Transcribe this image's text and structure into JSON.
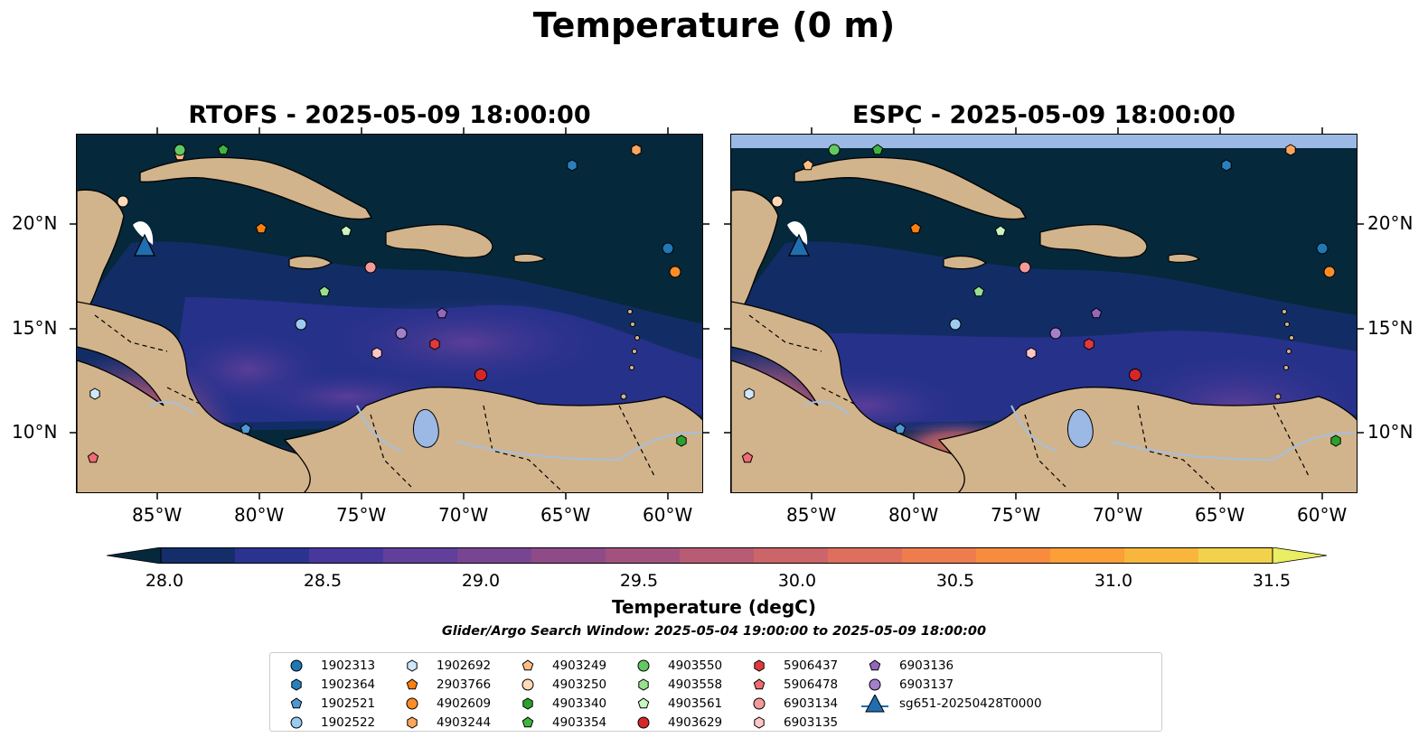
{
  "figure": {
    "suptitle": "Temperature (0 m)",
    "panels": [
      {
        "title": "RTOFS - 2025-05-09 18:00:00"
      },
      {
        "title": "ESPC - 2025-05-09 18:00:00"
      }
    ],
    "lon_ticks": [
      "85°W",
      "80°W",
      "75°W",
      "70°W",
      "65°W",
      "60°W"
    ],
    "lat_ticks": [
      "20°N",
      "15°N",
      "10°N"
    ],
    "colorbar": {
      "label": "Temperature (degC)",
      "ticks": [
        "28.0",
        "28.5",
        "29.0",
        "29.5",
        "30.0",
        "30.5",
        "31.0",
        "31.5"
      ],
      "min": 28.0,
      "max": 31.5,
      "colors": [
        "#05283b",
        "#142e6a",
        "#2a3390",
        "#48389d",
        "#613f9a",
        "#784592",
        "#8e4b88",
        "#a3527e",
        "#b85b74",
        "#cc6569",
        "#df6f5d",
        "#ef7c4d",
        "#f88c3e",
        "#fb9f36",
        "#f8b73c",
        "#f2d24b",
        "#e9ee62"
      ]
    },
    "search_window": "Glider/Argo Search Window: 2025-05-04 19:00:00 to 2025-05-09 18:00:00",
    "colors": {
      "land": "#d2b48c",
      "ocean_dark": "#05283b",
      "water_inland": "#a5bfdd",
      "espc_band": "#9bb9e4"
    }
  },
  "legend": [
    {
      "label": "1902313",
      "marker": "circle",
      "color": "#1f77b4"
    },
    {
      "label": "1902364",
      "marker": "hexagon",
      "color": "#2a7fbf"
    },
    {
      "label": "1902521",
      "marker": "pentagon",
      "color": "#4e98d3"
    },
    {
      "label": "1902522",
      "marker": "circle",
      "color": "#9ccbf0"
    },
    {
      "label": "1902692",
      "marker": "hexagon",
      "color": "#cfe8fb"
    },
    {
      "label": "2903766",
      "marker": "pentagon",
      "color": "#ff7f0e"
    },
    {
      "label": "4902609",
      "marker": "circle",
      "color": "#ff8c25"
    },
    {
      "label": "4903244",
      "marker": "hexagon",
      "color": "#ffa55c"
    },
    {
      "label": "4903249",
      "marker": "pentagon",
      "color": "#ffbe84"
    },
    {
      "label": "4903250",
      "marker": "circle",
      "color": "#ffd9b8"
    },
    {
      "label": "4903340",
      "marker": "hexagon",
      "color": "#2ca02c"
    },
    {
      "label": "4903354",
      "marker": "pentagon",
      "color": "#3fb43f"
    },
    {
      "label": "4903550",
      "marker": "circle",
      "color": "#62c862"
    },
    {
      "label": "4903558",
      "marker": "hexagon",
      "color": "#98e08e"
    },
    {
      "label": "4903561",
      "marker": "pentagon",
      "color": "#c8f5c0"
    },
    {
      "label": "4903629",
      "marker": "circle",
      "color": "#d62728"
    },
    {
      "label": "5906437",
      "marker": "hexagon",
      "color": "#e0393c"
    },
    {
      "label": "5906478",
      "marker": "pentagon",
      "color": "#ee6c72"
    },
    {
      "label": "6903134",
      "marker": "circle",
      "color": "#f59a9a"
    },
    {
      "label": "6903135",
      "marker": "hexagon",
      "color": "#ffc6c6"
    },
    {
      "label": "6903136",
      "marker": "pentagon",
      "color": "#9467bd"
    },
    {
      "label": "6903137",
      "marker": "circle",
      "color": "#a37fcc"
    },
    {
      "label": "sg651-20250428T0000",
      "marker": "triangle",
      "color": "#1f6fb0"
    }
  ]
}
